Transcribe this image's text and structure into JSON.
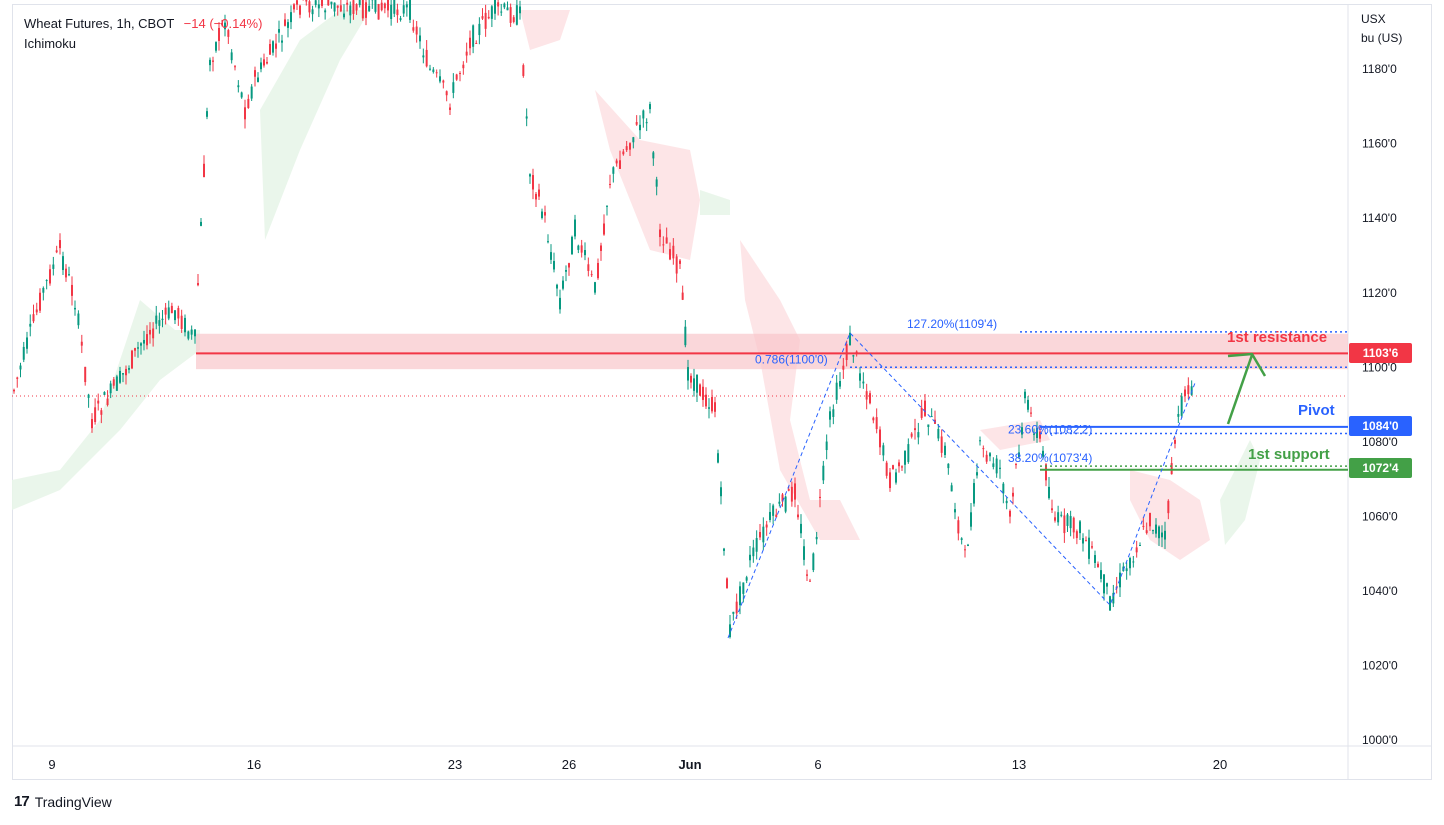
{
  "legend": {
    "symbol": "Wheat Futures, 1h, CBOT",
    "change": "−14 (−0.14%)",
    "indicator": "Ichimoku"
  },
  "price_axis": {
    "currency": "USX",
    "unit": "bu (US)"
  },
  "branding": {
    "name": "TradingView"
  },
  "levels": {
    "resistance": {
      "label": "1st resistance",
      "price_tag": "1103'6",
      "color": "#f23645"
    },
    "pivot": {
      "label": "Pivot",
      "price_tag": "1084'0",
      "color": "#2962ff"
    },
    "support": {
      "label": "1st support",
      "price_tag": "1072'4",
      "color": "#43a047"
    }
  },
  "fib_labels": {
    "ext_127": "127.20%(1109'4)",
    "ret_786": "0.786(1100'0)",
    "ret_236": "23.60%(1082'2)",
    "ret_382": "38.20%(1073'4)"
  },
  "chart_data": {
    "type": "candlestick",
    "title": "Wheat Futures, 1h, CBOT",
    "ylabel": "USX bu (US)",
    "ylim": [
      1000,
      1200
    ],
    "y_ticks": [
      "1000'0",
      "1020'0",
      "1040'0",
      "1060'0",
      "1080'0",
      "1100'0",
      "1120'0",
      "1140'0",
      "1160'0",
      "1180'0"
    ],
    "x_ticks": [
      "9",
      "16",
      "23",
      "26",
      "Jun",
      "6",
      "13",
      "20"
    ],
    "horizontal_levels": [
      {
        "name": "1st resistance",
        "value": 1103.75
      },
      {
        "name": "Pivot",
        "value": 1084.0
      },
      {
        "name": "1st support",
        "value": 1072.5
      }
    ],
    "fibonacci": [
      {
        "label": "127.20%",
        "value": 1109.5
      },
      {
        "label": "0.786",
        "value": 1100.0
      },
      {
        "label": "23.60%",
        "value": 1082.25
      },
      {
        "label": "38.20%",
        "value": 1073.5
      }
    ],
    "approx_path": [
      {
        "x": "May 6",
        "y": 1088
      },
      {
        "x": "May 8",
        "y": 1128
      },
      {
        "x": "May 10",
        "y": 1092
      },
      {
        "x": "May 13",
        "y": 1112
      },
      {
        "x": "May 15",
        "y": 1185
      },
      {
        "x": "May 16",
        "y": 1165
      },
      {
        "x": "May 20",
        "y": 1200
      },
      {
        "x": "May 22",
        "y": 1175
      },
      {
        "x": "May 24",
        "y": 1202
      },
      {
        "x": "May 26",
        "y": 1120
      },
      {
        "x": "May 28",
        "y": 1155
      },
      {
        "x": "May 30",
        "y": 1168
      },
      {
        "x": "May 31",
        "y": 1090
      },
      {
        "x": "Jun 3",
        "y": 1028
      },
      {
        "x": "Jun 5",
        "y": 1065
      },
      {
        "x": "Jun 6",
        "y": 1040
      },
      {
        "x": "Jun 7",
        "y": 1108
      },
      {
        "x": "Jun 10",
        "y": 1075
      },
      {
        "x": "Jun 12",
        "y": 1045
      },
      {
        "x": "Jun 13",
        "y": 1092
      },
      {
        "x": "Jun 15",
        "y": 1036
      },
      {
        "x": "Jun 17",
        "y": 1050
      },
      {
        "x": "Jun 18",
        "y": 1095
      }
    ]
  }
}
